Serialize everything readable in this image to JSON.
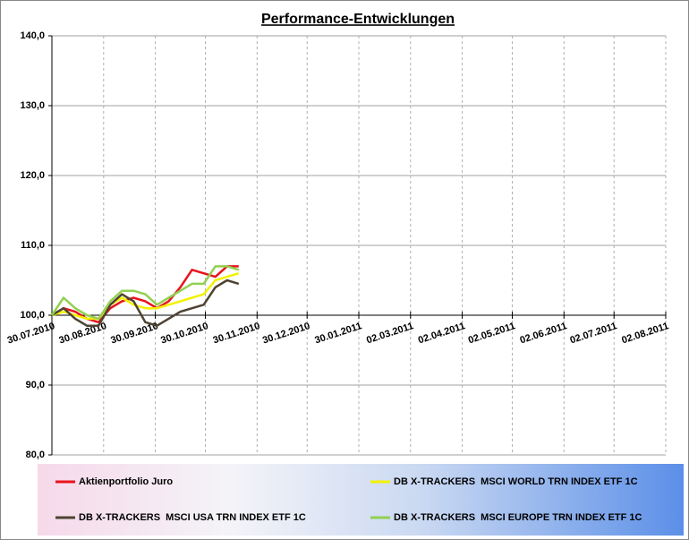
{
  "chart_data": {
    "type": "line",
    "title": "Performance-Entwicklungen",
    "x": [
      "30.07.2010",
      "06.08.2010",
      "13.08.2010",
      "20.08.2010",
      "27.08.2010",
      "03.09.2010",
      "10.09.2010",
      "17.09.2010",
      "24.09.2010",
      "01.10.2010",
      "08.10.2010",
      "15.10.2010",
      "22.10.2010",
      "29.10.2010",
      "05.11.2010",
      "12.11.2010",
      "19.11.2010"
    ],
    "xlim": [
      "30.07.2010",
      "02.08.2011"
    ],
    "xticks": [
      "30.07.2010",
      "30.08.2010",
      "30.09.2010",
      "30.10.2010",
      "30.11.2010",
      "30.12.2010",
      "30.01.2011",
      "02.03.2011",
      "02.04.2011",
      "02.05.2011",
      "02.06.2011",
      "02.07.2011",
      "02.08.2011"
    ],
    "x_axis_crosses_at": 100,
    "ylim": [
      80,
      140
    ],
    "yticks": [
      {
        "value": 80,
        "label": "80,0"
      },
      {
        "value": 90,
        "label": "90,0"
      },
      {
        "value": 100,
        "label": "100,0"
      },
      {
        "value": 110,
        "label": "110,0"
      },
      {
        "value": 120,
        "label": "120,0"
      },
      {
        "value": 130,
        "label": "130,0"
      },
      {
        "value": 140,
        "label": "140,0"
      }
    ],
    "grid": true,
    "series": [
      {
        "name": "Aktienportfolio Juro",
        "color": "#e8141c",
        "values": [
          100,
          101,
          100.5,
          99.5,
          99,
          101,
          102,
          102.5,
          102,
          101,
          102,
          104,
          106.5,
          106,
          105.5,
          107,
          107
        ]
      },
      {
        "name": "DB X-TRACKERS  MSCI WORLD TRN INDEX ETF 1C",
        "color": "#f2f200",
        "values": [
          100,
          100.5,
          100,
          99.5,
          99.5,
          101.5,
          102.5,
          101.5,
          101,
          101,
          101.5,
          102,
          102.5,
          103,
          105,
          105.5,
          106
        ]
      },
      {
        "name": "DB X-TRACKERS  MSCI USA TRN INDEX ETF 1C",
        "color": "#4d4332",
        "values": [
          100,
          101,
          99.5,
          98.5,
          98.5,
          101.5,
          103,
          102,
          99,
          98.5,
          99.5,
          100.5,
          101,
          101.5,
          104,
          105,
          104.5
        ]
      },
      {
        "name": "DB X-TRACKERS  MSCI EUROPE TRN INDEX ETF 1C",
        "color": "#92d050",
        "values": [
          100,
          102.5,
          101,
          100,
          99.5,
          102,
          103.5,
          103.5,
          103,
          101.5,
          102.5,
          103.5,
          104.5,
          104.5,
          107,
          107,
          106.5
        ]
      }
    ]
  }
}
